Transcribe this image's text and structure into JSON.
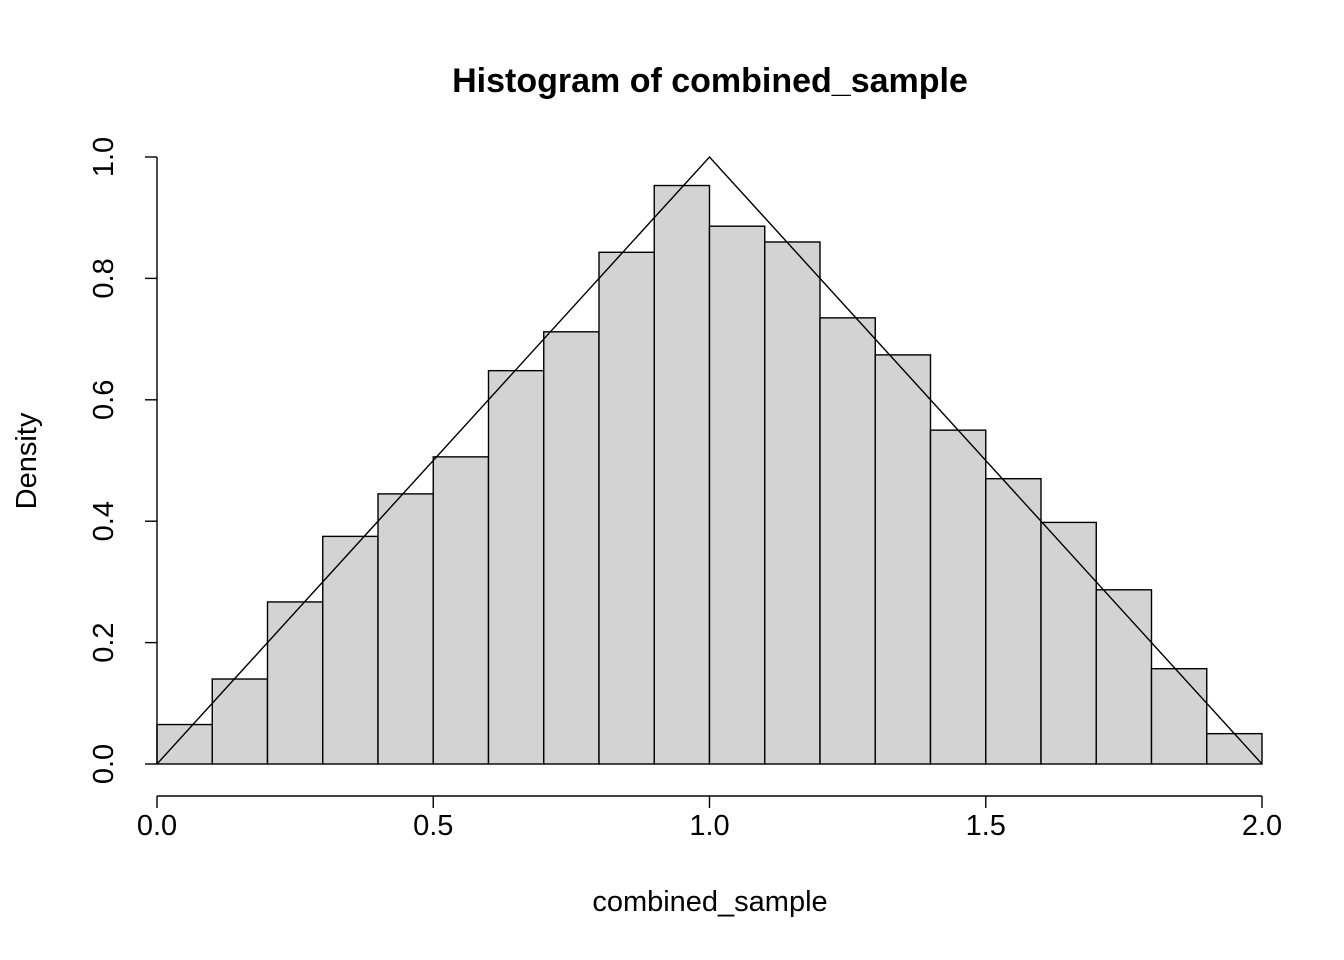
{
  "chart_data": {
    "type": "bar",
    "title": "Histogram of combined_sample",
    "xlabel": "combined_sample",
    "ylabel": "Density",
    "xlim": [
      0,
      2
    ],
    "ylim": [
      0,
      1
    ],
    "x_ticks": [
      0,
      0.5,
      1,
      1.5,
      2
    ],
    "x_tick_labels": [
      "0.0",
      "0.5",
      "1.0",
      "1.5",
      "2.0"
    ],
    "y_ticks": [
      0,
      0.2,
      0.4,
      0.6,
      0.8,
      1
    ],
    "y_tick_labels": [
      "0.0",
      "0.2",
      "0.4",
      "0.6",
      "0.8",
      "1.0"
    ],
    "grid": false,
    "bins": [
      {
        "x0": 0.0,
        "x1": 0.1,
        "density": 0.065
      },
      {
        "x0": 0.1,
        "x1": 0.2,
        "density": 0.14
      },
      {
        "x0": 0.2,
        "x1": 0.3,
        "density": 0.267
      },
      {
        "x0": 0.3,
        "x1": 0.4,
        "density": 0.375
      },
      {
        "x0": 0.4,
        "x1": 0.5,
        "density": 0.445
      },
      {
        "x0": 0.5,
        "x1": 0.6,
        "density": 0.506
      },
      {
        "x0": 0.6,
        "x1": 0.7,
        "density": 0.648
      },
      {
        "x0": 0.7,
        "x1": 0.8,
        "density": 0.712
      },
      {
        "x0": 0.8,
        "x1": 0.9,
        "density": 0.843
      },
      {
        "x0": 0.9,
        "x1": 1.0,
        "density": 0.953
      },
      {
        "x0": 1.0,
        "x1": 1.1,
        "density": 0.886
      },
      {
        "x0": 1.1,
        "x1": 1.2,
        "density": 0.86
      },
      {
        "x0": 1.2,
        "x1": 1.3,
        "density": 0.735
      },
      {
        "x0": 1.3,
        "x1": 1.4,
        "density": 0.674
      },
      {
        "x0": 1.4,
        "x1": 1.5,
        "density": 0.55
      },
      {
        "x0": 1.5,
        "x1": 1.6,
        "density": 0.47
      },
      {
        "x0": 1.6,
        "x1": 1.7,
        "density": 0.398
      },
      {
        "x0": 1.7,
        "x1": 1.8,
        "density": 0.287
      },
      {
        "x0": 1.8,
        "x1": 1.9,
        "density": 0.157
      },
      {
        "x0": 1.9,
        "x1": 2.0,
        "density": 0.05
      }
    ],
    "overlay_line": {
      "x": [
        0,
        1,
        2
      ],
      "y": [
        0,
        1,
        0
      ]
    },
    "bar_fill": "#d3d3d3",
    "bar_stroke": "#000000"
  }
}
